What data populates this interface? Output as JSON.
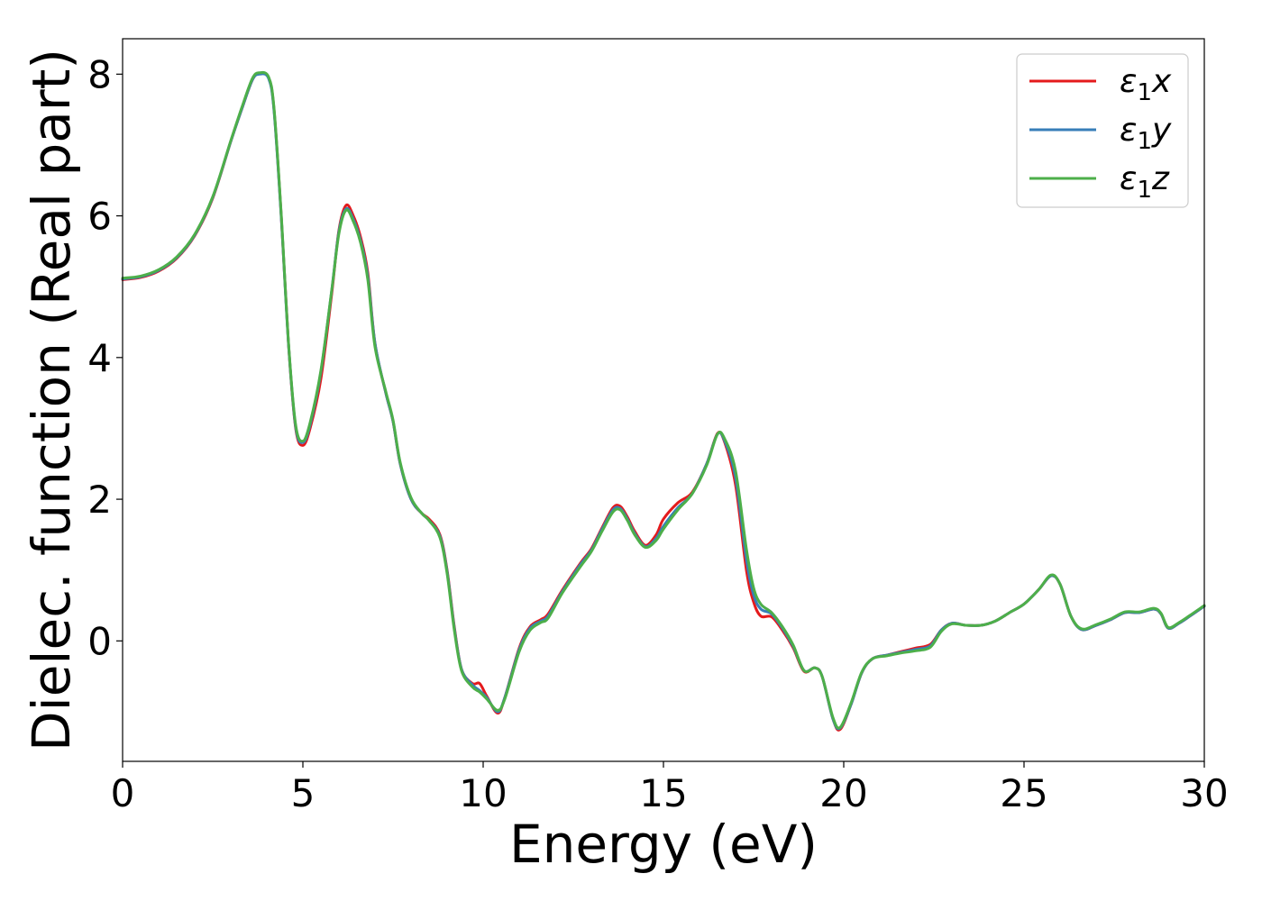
{
  "chart_data": {
    "type": "line",
    "xlabel": "Energy (eV)",
    "ylabel": "Dielec. function (Real part)",
    "xlim": [
      0,
      30
    ],
    "ylim": [
      -1.7,
      8.5
    ],
    "xticks": [
      0,
      5,
      10,
      15,
      20,
      25,
      30
    ],
    "yticks": [
      0,
      2,
      4,
      6,
      8
    ],
    "grid": false,
    "legend_position": "top-right",
    "series": [
      {
        "name": "ε₁x",
        "legend_base": "ε",
        "legend_sub": "1",
        "legend_suffix": "x",
        "color": "#e41a1c",
        "points": [
          [
            0,
            5.1
          ],
          [
            0.5,
            5.13
          ],
          [
            1,
            5.22
          ],
          [
            1.5,
            5.4
          ],
          [
            2,
            5.72
          ],
          [
            2.5,
            6.25
          ],
          [
            3,
            7.05
          ],
          [
            3.3,
            7.5
          ],
          [
            3.6,
            7.92
          ],
          [
            3.8,
            8.01
          ],
          [
            4.05,
            7.95
          ],
          [
            4.2,
            7.5
          ],
          [
            4.4,
            6.0
          ],
          [
            4.6,
            4.2
          ],
          [
            4.8,
            3.0
          ],
          [
            5.0,
            2.76
          ],
          [
            5.2,
            3.0
          ],
          [
            5.5,
            3.7
          ],
          [
            5.8,
            4.9
          ],
          [
            6.0,
            5.8
          ],
          [
            6.2,
            6.15
          ],
          [
            6.4,
            6.0
          ],
          [
            6.6,
            5.7
          ],
          [
            6.8,
            5.2
          ],
          [
            7.0,
            4.2
          ],
          [
            7.3,
            3.5
          ],
          [
            7.5,
            3.1
          ],
          [
            7.7,
            2.5
          ],
          [
            8.0,
            2.0
          ],
          [
            8.3,
            1.8
          ],
          [
            8.5,
            1.72
          ],
          [
            8.8,
            1.5
          ],
          [
            9.0,
            1.0
          ],
          [
            9.2,
            0.2
          ],
          [
            9.4,
            -0.4
          ],
          [
            9.7,
            -0.6
          ],
          [
            9.9,
            -0.6
          ],
          [
            10.1,
            -0.78
          ],
          [
            10.4,
            -1.02
          ],
          [
            10.6,
            -0.8
          ],
          [
            11.0,
            -0.1
          ],
          [
            11.3,
            0.2
          ],
          [
            11.6,
            0.3
          ],
          [
            11.8,
            0.38
          ],
          [
            12.2,
            0.72
          ],
          [
            12.7,
            1.1
          ],
          [
            13.0,
            1.3
          ],
          [
            13.3,
            1.6
          ],
          [
            13.6,
            1.88
          ],
          [
            13.8,
            1.9
          ],
          [
            14.0,
            1.75
          ],
          [
            14.2,
            1.55
          ],
          [
            14.5,
            1.35
          ],
          [
            14.8,
            1.5
          ],
          [
            15.0,
            1.72
          ],
          [
            15.4,
            1.95
          ],
          [
            15.8,
            2.1
          ],
          [
            16.2,
            2.5
          ],
          [
            16.5,
            2.93
          ],
          [
            16.7,
            2.8
          ],
          [
            17.0,
            2.2
          ],
          [
            17.3,
            1.0
          ],
          [
            17.5,
            0.55
          ],
          [
            17.7,
            0.35
          ],
          [
            18.0,
            0.34
          ],
          [
            18.3,
            0.15
          ],
          [
            18.6,
            -0.1
          ],
          [
            18.9,
            -0.43
          ],
          [
            19.2,
            -0.38
          ],
          [
            19.4,
            -0.5
          ],
          [
            19.7,
            -1.1
          ],
          [
            19.9,
            -1.25
          ],
          [
            20.2,
            -0.9
          ],
          [
            20.5,
            -0.45
          ],
          [
            20.8,
            -0.25
          ],
          [
            21.2,
            -0.2
          ],
          [
            21.6,
            -0.15
          ],
          [
            22.0,
            -0.1
          ],
          [
            22.4,
            -0.05
          ],
          [
            22.7,
            0.15
          ],
          [
            23.0,
            0.25
          ],
          [
            23.4,
            0.22
          ],
          [
            23.8,
            0.22
          ],
          [
            24.2,
            0.28
          ],
          [
            24.6,
            0.4
          ],
          [
            25.0,
            0.52
          ],
          [
            25.4,
            0.72
          ],
          [
            25.75,
            0.92
          ],
          [
            26.0,
            0.8
          ],
          [
            26.3,
            0.35
          ],
          [
            26.6,
            0.16
          ],
          [
            27.0,
            0.22
          ],
          [
            27.4,
            0.3
          ],
          [
            27.8,
            0.4
          ],
          [
            28.2,
            0.4
          ],
          [
            28.6,
            0.45
          ],
          [
            28.8,
            0.38
          ],
          [
            29.0,
            0.18
          ],
          [
            29.3,
            0.25
          ],
          [
            29.6,
            0.35
          ],
          [
            30.0,
            0.49
          ]
        ]
      },
      {
        "name": "ε₁y",
        "legend_base": "ε",
        "legend_sub": "1",
        "legend_suffix": "y",
        "color": "#377eb8",
        "points": [
          [
            0,
            5.11
          ],
          [
            0.5,
            5.14
          ],
          [
            1,
            5.23
          ],
          [
            1.5,
            5.41
          ],
          [
            2,
            5.73
          ],
          [
            2.5,
            6.26
          ],
          [
            3,
            7.05
          ],
          [
            3.3,
            7.5
          ],
          [
            3.6,
            7.92
          ],
          [
            3.8,
            8.0
          ],
          [
            4.05,
            7.94
          ],
          [
            4.2,
            7.48
          ],
          [
            4.4,
            5.98
          ],
          [
            4.6,
            4.2
          ],
          [
            4.8,
            3.02
          ],
          [
            5.0,
            2.8
          ],
          [
            5.2,
            3.05
          ],
          [
            5.5,
            3.8
          ],
          [
            5.8,
            4.95
          ],
          [
            6.0,
            5.78
          ],
          [
            6.2,
            6.1
          ],
          [
            6.4,
            5.95
          ],
          [
            6.6,
            5.65
          ],
          [
            6.8,
            5.15
          ],
          [
            7.0,
            4.2
          ],
          [
            7.3,
            3.5
          ],
          [
            7.5,
            3.1
          ],
          [
            7.7,
            2.5
          ],
          [
            8.0,
            2.0
          ],
          [
            8.3,
            1.8
          ],
          [
            8.5,
            1.7
          ],
          [
            8.8,
            1.48
          ],
          [
            9.0,
            0.98
          ],
          [
            9.2,
            0.18
          ],
          [
            9.4,
            -0.4
          ],
          [
            9.7,
            -0.62
          ],
          [
            9.9,
            -0.7
          ],
          [
            10.1,
            -0.8
          ],
          [
            10.4,
            -1.0
          ],
          [
            10.6,
            -0.8
          ],
          [
            11.0,
            -0.12
          ],
          [
            11.3,
            0.18
          ],
          [
            11.6,
            0.28
          ],
          [
            11.8,
            0.35
          ],
          [
            12.2,
            0.7
          ],
          [
            12.7,
            1.08
          ],
          [
            13.0,
            1.28
          ],
          [
            13.3,
            1.58
          ],
          [
            13.6,
            1.85
          ],
          [
            13.8,
            1.87
          ],
          [
            14.0,
            1.72
          ],
          [
            14.2,
            1.52
          ],
          [
            14.5,
            1.33
          ],
          [
            14.8,
            1.45
          ],
          [
            15.0,
            1.62
          ],
          [
            15.4,
            1.88
          ],
          [
            15.8,
            2.08
          ],
          [
            16.2,
            2.5
          ],
          [
            16.5,
            2.92
          ],
          [
            16.7,
            2.82
          ],
          [
            17.0,
            2.3
          ],
          [
            17.3,
            1.15
          ],
          [
            17.5,
            0.65
          ],
          [
            17.7,
            0.45
          ],
          [
            18.0,
            0.38
          ],
          [
            18.3,
            0.18
          ],
          [
            18.6,
            -0.08
          ],
          [
            18.9,
            -0.42
          ],
          [
            19.2,
            -0.38
          ],
          [
            19.4,
            -0.5
          ],
          [
            19.7,
            -1.1
          ],
          [
            19.9,
            -1.23
          ],
          [
            20.2,
            -0.9
          ],
          [
            20.5,
            -0.45
          ],
          [
            20.8,
            -0.25
          ],
          [
            21.2,
            -0.2
          ],
          [
            21.6,
            -0.16
          ],
          [
            22.0,
            -0.12
          ],
          [
            22.4,
            -0.07
          ],
          [
            22.7,
            0.15
          ],
          [
            23.0,
            0.25
          ],
          [
            23.4,
            0.22
          ],
          [
            23.8,
            0.22
          ],
          [
            24.2,
            0.28
          ],
          [
            24.6,
            0.4
          ],
          [
            25.0,
            0.52
          ],
          [
            25.4,
            0.72
          ],
          [
            25.75,
            0.92
          ],
          [
            26.0,
            0.8
          ],
          [
            26.3,
            0.35
          ],
          [
            26.6,
            0.16
          ],
          [
            27.0,
            0.22
          ],
          [
            27.4,
            0.3
          ],
          [
            27.8,
            0.4
          ],
          [
            28.2,
            0.4
          ],
          [
            28.6,
            0.45
          ],
          [
            28.8,
            0.38
          ],
          [
            29.0,
            0.18
          ],
          [
            29.3,
            0.25
          ],
          [
            29.6,
            0.35
          ],
          [
            30.0,
            0.49
          ]
        ]
      },
      {
        "name": "ε₁z",
        "legend_base": "ε",
        "legend_sub": "1",
        "legend_suffix": "z",
        "color": "#4daf4a",
        "points": [
          [
            0,
            5.12
          ],
          [
            0.5,
            5.15
          ],
          [
            1,
            5.24
          ],
          [
            1.5,
            5.42
          ],
          [
            2,
            5.74
          ],
          [
            2.5,
            6.27
          ],
          [
            3,
            7.06
          ],
          [
            3.3,
            7.52
          ],
          [
            3.6,
            7.94
          ],
          [
            3.8,
            8.02
          ],
          [
            4.05,
            7.96
          ],
          [
            4.2,
            7.52
          ],
          [
            4.4,
            6.02
          ],
          [
            4.6,
            4.22
          ],
          [
            4.8,
            3.05
          ],
          [
            5.0,
            2.82
          ],
          [
            5.2,
            3.08
          ],
          [
            5.5,
            3.82
          ],
          [
            5.8,
            4.95
          ],
          [
            6.0,
            5.75
          ],
          [
            6.2,
            6.08
          ],
          [
            6.4,
            5.92
          ],
          [
            6.6,
            5.62
          ],
          [
            6.8,
            5.1
          ],
          [
            7.0,
            4.15
          ],
          [
            7.3,
            3.52
          ],
          [
            7.5,
            3.12
          ],
          [
            7.7,
            2.52
          ],
          [
            8.0,
            2.02
          ],
          [
            8.3,
            1.8
          ],
          [
            8.5,
            1.7
          ],
          [
            8.8,
            1.46
          ],
          [
            9.0,
            0.95
          ],
          [
            9.2,
            0.15
          ],
          [
            9.4,
            -0.42
          ],
          [
            9.7,
            -0.65
          ],
          [
            9.9,
            -0.72
          ],
          [
            10.1,
            -0.82
          ],
          [
            10.4,
            -0.98
          ],
          [
            10.6,
            -0.82
          ],
          [
            11.0,
            -0.15
          ],
          [
            11.3,
            0.15
          ],
          [
            11.6,
            0.26
          ],
          [
            11.8,
            0.32
          ],
          [
            12.2,
            0.68
          ],
          [
            12.7,
            1.05
          ],
          [
            13.0,
            1.26
          ],
          [
            13.3,
            1.55
          ],
          [
            13.6,
            1.82
          ],
          [
            13.8,
            1.85
          ],
          [
            14.0,
            1.7
          ],
          [
            14.2,
            1.5
          ],
          [
            14.5,
            1.32
          ],
          [
            14.8,
            1.42
          ],
          [
            15.0,
            1.58
          ],
          [
            15.4,
            1.85
          ],
          [
            15.8,
            2.08
          ],
          [
            16.2,
            2.48
          ],
          [
            16.5,
            2.92
          ],
          [
            16.7,
            2.85
          ],
          [
            17.0,
            2.4
          ],
          [
            17.3,
            1.3
          ],
          [
            17.5,
            0.75
          ],
          [
            17.7,
            0.52
          ],
          [
            18.0,
            0.4
          ],
          [
            18.3,
            0.2
          ],
          [
            18.6,
            -0.06
          ],
          [
            18.9,
            -0.42
          ],
          [
            19.2,
            -0.38
          ],
          [
            19.4,
            -0.5
          ],
          [
            19.7,
            -1.08
          ],
          [
            19.9,
            -1.22
          ],
          [
            20.2,
            -0.88
          ],
          [
            20.5,
            -0.44
          ],
          [
            20.8,
            -0.25
          ],
          [
            21.2,
            -0.21
          ],
          [
            21.6,
            -0.17
          ],
          [
            22.0,
            -0.14
          ],
          [
            22.4,
            -0.09
          ],
          [
            22.7,
            0.13
          ],
          [
            23.0,
            0.24
          ],
          [
            23.4,
            0.22
          ],
          [
            23.8,
            0.22
          ],
          [
            24.2,
            0.28
          ],
          [
            24.6,
            0.4
          ],
          [
            25.0,
            0.52
          ],
          [
            25.4,
            0.72
          ],
          [
            25.75,
            0.93
          ],
          [
            26.0,
            0.8
          ],
          [
            26.3,
            0.35
          ],
          [
            26.6,
            0.17
          ],
          [
            27.0,
            0.23
          ],
          [
            27.4,
            0.31
          ],
          [
            27.8,
            0.41
          ],
          [
            28.2,
            0.41
          ],
          [
            28.6,
            0.46
          ],
          [
            28.8,
            0.39
          ],
          [
            29.0,
            0.19
          ],
          [
            29.3,
            0.26
          ],
          [
            29.6,
            0.36
          ],
          [
            30.0,
            0.5
          ]
        ]
      }
    ]
  }
}
